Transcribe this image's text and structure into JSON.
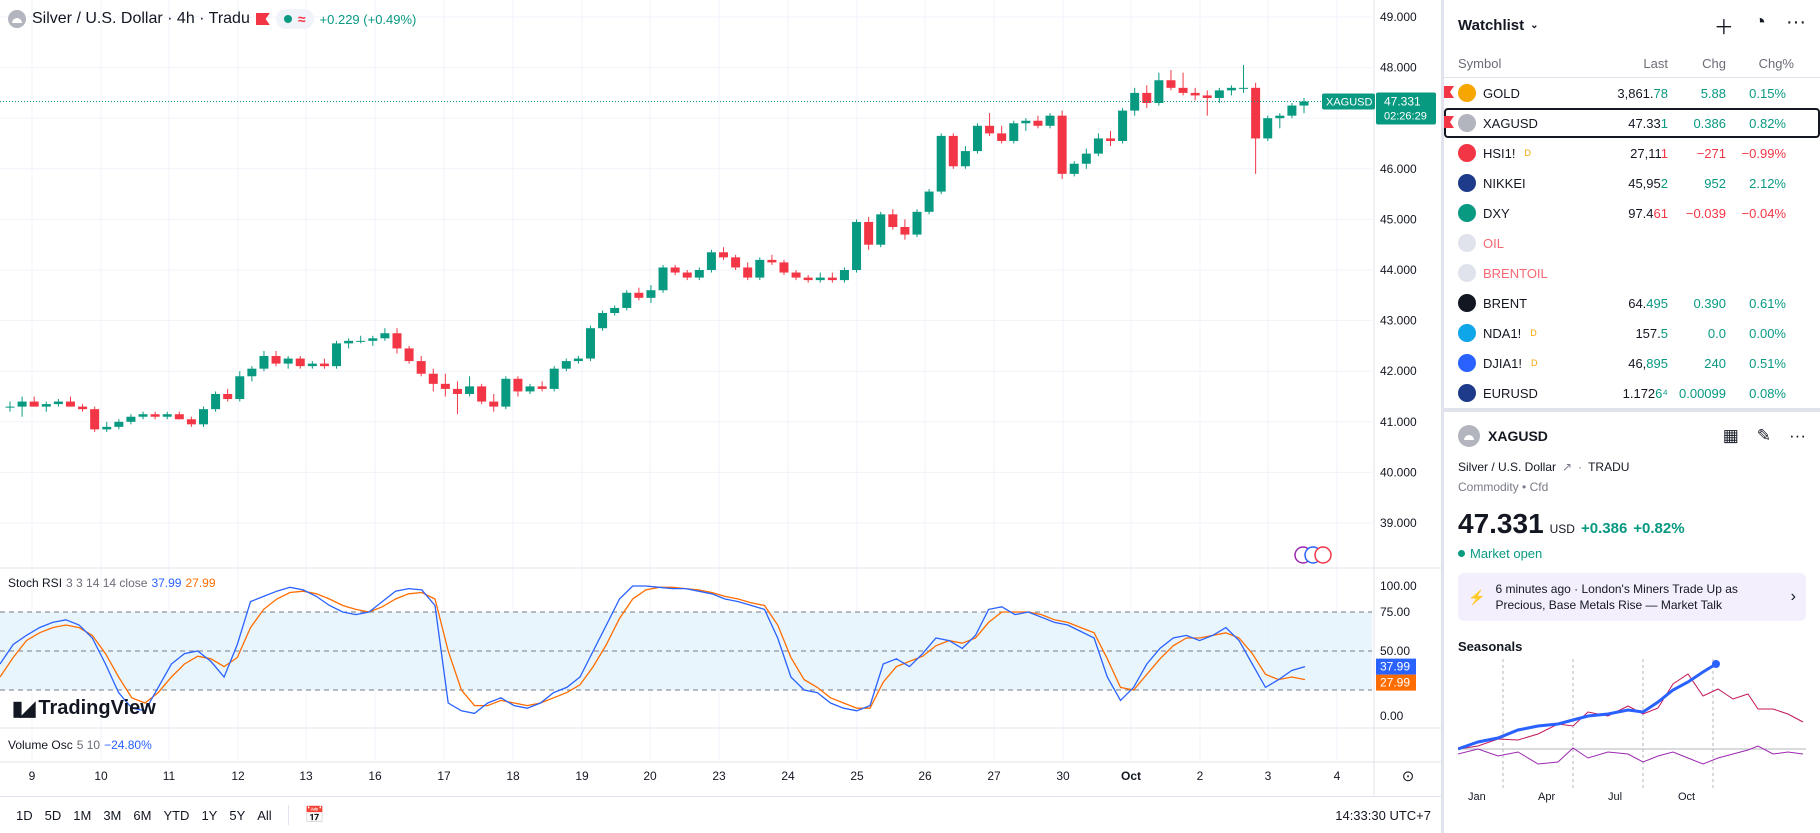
{
  "chart": {
    "legend_title": "Silver / U.S. Dollar · 4h · Tradu",
    "legend_change": "+0.229 (+0.49%)",
    "price_ticks": [
      "49.000",
      "48.000",
      "47.000",
      "46.000",
      "45.000",
      "44.000",
      "43.000",
      "42.000",
      "41.000",
      "40.000",
      "39.000"
    ],
    "price_tag_symbol": "XAGUSD",
    "price_tag_value": "47.331",
    "price_tag_timer": "02:26:29",
    "rsi_ticks": [
      "100.00",
      "75.00",
      "50.00",
      "0.00"
    ],
    "rsi_k_tag": "37.99",
    "rsi_d_tag": "27.99",
    "time_labels": [
      "9",
      "10",
      "11",
      "12",
      "13",
      "16",
      "17",
      "18",
      "19",
      "20",
      "23",
      "24",
      "25",
      "26",
      "27",
      "30",
      "Oct",
      "2",
      "3",
      "4"
    ],
    "candles": [
      [
        41.3,
        41.4,
        41.2,
        41.3
      ],
      [
        41.3,
        41.5,
        41.1,
        41.4
      ],
      [
        41.4,
        41.5,
        41.3,
        41.3
      ],
      [
        41.3,
        41.4,
        41.2,
        41.35
      ],
      [
        41.35,
        41.45,
        41.3,
        41.4
      ],
      [
        41.4,
        41.5,
        41.3,
        41.3
      ],
      [
        41.3,
        41.35,
        41.2,
        41.25
      ],
      [
        41.25,
        41.3,
        40.8,
        40.85
      ],
      [
        40.85,
        41.0,
        40.8,
        40.9
      ],
      [
        40.9,
        41.05,
        40.85,
        41.0
      ],
      [
        41.0,
        41.15,
        40.95,
        41.1
      ],
      [
        41.1,
        41.2,
        41.05,
        41.15
      ],
      [
        41.15,
        41.2,
        41.05,
        41.1
      ],
      [
        41.1,
        41.2,
        41.05,
        41.15
      ],
      [
        41.15,
        41.2,
        41.05,
        41.05
      ],
      [
        41.05,
        41.1,
        40.9,
        40.95
      ],
      [
        40.95,
        41.3,
        40.9,
        41.25
      ],
      [
        41.25,
        41.6,
        41.2,
        41.55
      ],
      [
        41.55,
        41.65,
        41.4,
        41.45
      ],
      [
        41.45,
        42.0,
        41.4,
        41.9
      ],
      [
        41.9,
        42.1,
        41.8,
        42.05
      ],
      [
        42.05,
        42.4,
        42.0,
        42.3
      ],
      [
        42.3,
        42.4,
        42.1,
        42.15
      ],
      [
        42.15,
        42.3,
        42.05,
        42.25
      ],
      [
        42.25,
        42.3,
        42.05,
        42.1
      ],
      [
        42.1,
        42.2,
        42.05,
        42.15
      ],
      [
        42.15,
        42.25,
        42.05,
        42.1
      ],
      [
        42.1,
        42.6,
        42.05,
        42.55
      ],
      [
        42.55,
        42.65,
        42.45,
        42.6
      ],
      [
        42.6,
        42.7,
        42.55,
        42.6
      ],
      [
        42.6,
        42.7,
        42.5,
        42.65
      ],
      [
        42.65,
        42.85,
        42.6,
        42.75
      ],
      [
        42.75,
        42.85,
        42.35,
        42.45
      ],
      [
        42.45,
        42.5,
        42.15,
        42.2
      ],
      [
        42.2,
        42.3,
        41.9,
        41.95
      ],
      [
        41.95,
        42.05,
        41.6,
        41.75
      ],
      [
        41.75,
        41.95,
        41.5,
        41.65
      ],
      [
        41.65,
        41.8,
        41.15,
        41.55
      ],
      [
        41.55,
        41.9,
        41.5,
        41.7
      ],
      [
        41.7,
        41.75,
        41.35,
        41.4
      ],
      [
        41.4,
        41.55,
        41.2,
        41.3
      ],
      [
        41.3,
        41.9,
        41.25,
        41.85
      ],
      [
        41.85,
        41.9,
        41.5,
        41.6
      ],
      [
        41.6,
        41.75,
        41.55,
        41.7
      ],
      [
        41.7,
        41.8,
        41.6,
        41.65
      ],
      [
        41.65,
        42.1,
        41.6,
        42.05
      ],
      [
        42.05,
        42.25,
        42.0,
        42.2
      ],
      [
        42.2,
        42.3,
        42.15,
        42.25
      ],
      [
        42.25,
        42.9,
        42.2,
        42.85
      ],
      [
        42.85,
        43.2,
        42.8,
        43.15
      ],
      [
        43.15,
        43.3,
        43.1,
        43.25
      ],
      [
        43.25,
        43.6,
        43.2,
        43.55
      ],
      [
        43.55,
        43.65,
        43.4,
        43.45
      ],
      [
        43.45,
        43.7,
        43.35,
        43.6
      ],
      [
        43.6,
        44.1,
        43.55,
        44.05
      ],
      [
        44.05,
        44.1,
        43.9,
        43.95
      ],
      [
        43.95,
        44.0,
        43.8,
        43.85
      ],
      [
        43.85,
        44.05,
        43.8,
        44.0
      ],
      [
        44.0,
        44.4,
        43.95,
        44.35
      ],
      [
        44.35,
        44.45,
        44.2,
        44.25
      ],
      [
        44.25,
        44.3,
        44.0,
        44.05
      ],
      [
        44.05,
        44.15,
        43.8,
        43.85
      ],
      [
        43.85,
        44.25,
        43.8,
        44.2
      ],
      [
        44.2,
        44.3,
        44.1,
        44.15
      ],
      [
        44.15,
        44.2,
        43.9,
        43.95
      ],
      [
        43.95,
        44.0,
        43.8,
        43.85
      ],
      [
        43.85,
        43.9,
        43.75,
        43.8
      ],
      [
        43.8,
        43.95,
        43.75,
        43.85
      ],
      [
        43.85,
        43.95,
        43.75,
        43.8
      ],
      [
        43.8,
        44.05,
        43.75,
        44.0
      ],
      [
        44.0,
        45.0,
        43.95,
        44.95
      ],
      [
        44.95,
        45.05,
        44.4,
        44.5
      ],
      [
        44.5,
        45.15,
        44.45,
        45.1
      ],
      [
        45.1,
        45.2,
        44.8,
        44.85
      ],
      [
        44.85,
        45.0,
        44.6,
        44.7
      ],
      [
        44.7,
        45.2,
        44.65,
        45.15
      ],
      [
        45.15,
        45.6,
        45.1,
        45.55
      ],
      [
        45.55,
        46.7,
        45.5,
        46.65
      ],
      [
        46.65,
        46.7,
        46.0,
        46.05
      ],
      [
        46.05,
        46.45,
        46.0,
        46.35
      ],
      [
        46.35,
        46.9,
        46.3,
        46.85
      ],
      [
        46.85,
        47.1,
        46.65,
        46.7
      ],
      [
        46.7,
        46.85,
        46.5,
        46.55
      ],
      [
        46.55,
        46.95,
        46.5,
        46.9
      ],
      [
        46.9,
        47.0,
        46.75,
        46.95
      ],
      [
        46.95,
        47.05,
        46.8,
        46.85
      ],
      [
        46.85,
        47.1,
        46.8,
        47.05
      ],
      [
        47.05,
        47.15,
        45.8,
        45.9
      ],
      [
        45.9,
        46.15,
        45.85,
        46.1
      ],
      [
        46.1,
        46.4,
        46.0,
        46.3
      ],
      [
        46.3,
        46.7,
        46.25,
        46.6
      ],
      [
        46.6,
        46.75,
        46.45,
        46.55
      ],
      [
        46.55,
        47.2,
        46.5,
        47.15
      ],
      [
        47.15,
        47.6,
        47.05,
        47.5
      ],
      [
        47.5,
        47.65,
        47.2,
        47.3
      ],
      [
        47.3,
        47.9,
        47.25,
        47.75
      ],
      [
        47.75,
        47.95,
        47.55,
        47.6
      ],
      [
        47.6,
        47.9,
        47.45,
        47.5
      ],
      [
        47.5,
        47.6,
        47.35,
        47.45
      ],
      [
        47.45,
        47.55,
        47.05,
        47.4
      ],
      [
        47.4,
        47.6,
        47.3,
        47.55
      ],
      [
        47.55,
        47.65,
        47.45,
        47.6
      ],
      [
        47.6,
        48.05,
        47.5,
        47.6
      ],
      [
        47.6,
        47.7,
        45.9,
        46.6
      ],
      [
        46.6,
        47.05,
        46.55,
        47.0
      ],
      [
        47.0,
        47.1,
        46.8,
        47.05
      ],
      [
        47.05,
        47.3,
        47.0,
        47.25
      ],
      [
        47.25,
        47.4,
        47.1,
        47.33
      ]
    ],
    "stoch_k": [
      40,
      55,
      62,
      68,
      72,
      74,
      70,
      60,
      40,
      18,
      6,
      4,
      22,
      40,
      48,
      50,
      42,
      30,
      55,
      88,
      92,
      96,
      99,
      97,
      92,
      85,
      80,
      78,
      80,
      88,
      96,
      98,
      97,
      85,
      10,
      4,
      2,
      10,
      14,
      8,
      6,
      10,
      18,
      22,
      30,
      50,
      70,
      90,
      100,
      100,
      99,
      98,
      98,
      96,
      94,
      90,
      88,
      85,
      82,
      60,
      30,
      20,
      18,
      10,
      6,
      4,
      8,
      40,
      44,
      38,
      48,
      60,
      58,
      52,
      62,
      82,
      84,
      78,
      80,
      76,
      72,
      70,
      65,
      60,
      30,
      12,
      22,
      40,
      52,
      60,
      62,
      58,
      62,
      68,
      58,
      40,
      22,
      28,
      35,
      38
    ],
    "stoch_d": [
      30,
      45,
      58,
      64,
      68,
      70,
      68,
      62,
      48,
      30,
      14,
      10,
      18,
      30,
      40,
      46,
      44,
      38,
      45,
      68,
      82,
      90,
      95,
      96,
      94,
      90,
      85,
      82,
      80,
      84,
      90,
      94,
      95,
      90,
      50,
      20,
      8,
      8,
      12,
      10,
      8,
      10,
      14,
      18,
      24,
      38,
      55,
      75,
      90,
      97,
      99,
      99,
      98,
      97,
      95,
      92,
      90,
      87,
      85,
      70,
      45,
      28,
      22,
      14,
      10,
      6,
      6,
      26,
      38,
      42,
      46,
      54,
      58,
      56,
      60,
      72,
      80,
      80,
      80,
      78,
      74,
      72,
      68,
      64,
      44,
      22,
      20,
      32,
      44,
      54,
      60,
      60,
      62,
      64,
      60,
      48,
      32,
      28,
      30,
      28
    ],
    "rsi_title": "Stoch RSI",
    "rsi_params": "3 3 14 14 close",
    "rsi_k_val": "37.99",
    "rsi_d_val": "27.99",
    "vol_title": "Volume Osc",
    "vol_params": "5 10",
    "vol_val": "−24.80%",
    "logo_text": "TradingView"
  },
  "bottom_bar": {
    "ranges": [
      "1D",
      "5D",
      "1M",
      "3M",
      "6M",
      "YTD",
      "1Y",
      "5Y",
      "All"
    ],
    "clock": "14:33:30 UTC+7"
  },
  "watchlist": {
    "title": "Watchlist",
    "columns": [
      "Symbol",
      "Last",
      "Chg",
      "Chg%"
    ],
    "rows": [
      {
        "sym": "GOLD",
        "last_a": "3,861.",
        "last_b": "78",
        "chg": "5.88",
        "pct": "0.15%",
        "dir": "pos",
        "icon": "#f7a600",
        "flag": true,
        "sup": ""
      },
      {
        "sym": "XAGUSD",
        "last_a": "47.33",
        "last_b": "1",
        "chg": "0.386",
        "pct": "0.82%",
        "dir": "pos",
        "icon": "#b2b5be",
        "flag": true,
        "sup": ""
      },
      {
        "sym": "HSI1!",
        "last_a": "27,11",
        "last_b": "1",
        "chg": "−271",
        "pct": "−0.99%",
        "dir": "neg",
        "icon": "#f23645",
        "flag": false,
        "sup": "D"
      },
      {
        "sym": "NIKKEI",
        "last_a": "45,95",
        "last_b": "2",
        "chg": "952",
        "pct": "2.12%",
        "dir": "pos",
        "icon": "#1e3a8a",
        "flag": false,
        "sup": ""
      },
      {
        "sym": "DXY",
        "last_a": "97.4",
        "last_b": "61",
        "chg": "−0.039",
        "pct": "−0.04%",
        "dir": "neg",
        "icon": "#089981",
        "flag": false,
        "sup": ""
      },
      {
        "sym": "OIL",
        "last_a": "",
        "last_b": "",
        "chg": "",
        "pct": "",
        "dir": "dim",
        "icon": "#e0e3eb",
        "flag": false,
        "sup": ""
      },
      {
        "sym": "BRENTOIL",
        "last_a": "",
        "last_b": "",
        "chg": "",
        "pct": "",
        "dir": "dim",
        "icon": "#e0e3eb",
        "flag": false,
        "sup": ""
      },
      {
        "sym": "BRENT",
        "last_a": "64.",
        "last_b": "495",
        "chg": "0.390",
        "pct": "0.61%",
        "dir": "pos",
        "icon": "#131722",
        "flag": false,
        "sup": ""
      },
      {
        "sym": "NDA1!",
        "last_a": "157.",
        "last_b": "5",
        "chg": "0.0",
        "pct": "0.00%",
        "dir": "pos",
        "icon": "#0ea5e9",
        "flag": false,
        "sup": "D"
      },
      {
        "sym": "DJIA1!",
        "last_a": "46,",
        "last_b": "895",
        "chg": "240",
        "pct": "0.51%",
        "dir": "pos",
        "icon": "#2962ff",
        "flag": false,
        "sup": "D"
      },
      {
        "sym": "EURUSD",
        "last_a": "1.172",
        "last_b": "6⁴",
        "chg": "0.00099",
        "pct": "0.08%",
        "dir": "pos",
        "icon": "#1e3a8a",
        "flag": false,
        "sup": ""
      }
    ]
  },
  "detail": {
    "symbol": "XAGUSD",
    "name": "Silver / U.S. Dollar",
    "exchange": "TRADU",
    "type": "Commodity",
    "subtype": "Cfd",
    "price": "47.331",
    "currency": "USD",
    "change": "+0.386",
    "change_pct": "+0.82%",
    "status": "Market open",
    "news_time": "6 minutes ago",
    "news_headline": "London's Miners Trade Up as Precious, Base Metals Rise — Market Talk",
    "seasonals_title": "Seasonals",
    "seasonal_months": [
      "Jan",
      "Apr",
      "Jul",
      "Oct"
    ]
  }
}
